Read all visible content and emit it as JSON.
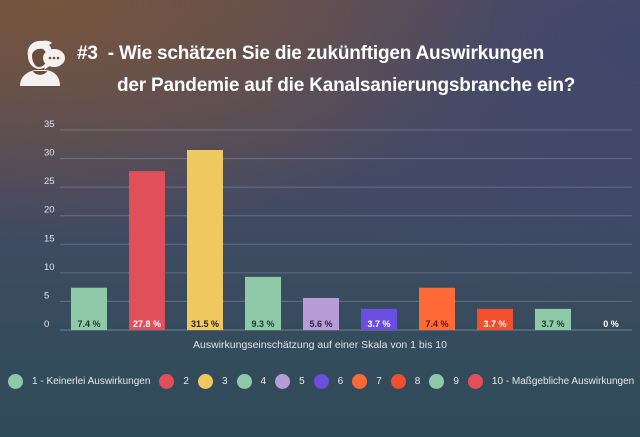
{
  "header": {
    "icon": "person-speech-bubble-icon",
    "number": "#3",
    "title_line1": "- Wie schätzen Sie die zukünftigen Auswirkungen",
    "title_line2": "der Pandemie auf die Kanalsanierungsbranche ein?"
  },
  "chart_data": {
    "type": "bar",
    "title": "#3 - Wie schätzen Sie die zukünftigen Auswirkungen der Pandemie auf die Kanalsanierungsbranche ein?",
    "xlabel": "Auswirkungseinschätzung auf einer Skala von 1 bis 10",
    "ylabel": "",
    "ylim": [
      0,
      35
    ],
    "yticks": [
      0,
      5,
      10,
      15,
      20,
      25,
      30,
      35
    ],
    "grid": true,
    "legend_position": "bottom",
    "categories": [
      "1 - Keinerlei Auswirkungen",
      "2",
      "3",
      "4",
      "5",
      "6",
      "7",
      "8",
      "9",
      "10 - Maßgebliche Auswirkungen"
    ],
    "values": [
      7.4,
      27.8,
      31.5,
      9.3,
      5.6,
      3.7,
      7.4,
      3.7,
      3.7,
      0
    ],
    "data_labels": [
      "7.4 %",
      "27.8 %",
      "31.5 %",
      "9.3 %",
      "5.6 %",
      "3.7 %",
      "7.4 %",
      "3.7 %",
      "3.7 %",
      "0 %"
    ],
    "colors": [
      "#8fc9a8",
      "#e0505a",
      "#f0c860",
      "#8fc9a8",
      "#b89cd8",
      "#6a4ee0",
      "#ff6a38",
      "#f0502e",
      "#8fc9a8",
      "#e0505a"
    ],
    "label_colors": [
      "#1e3a2c",
      "#ffffff",
      "#2a2410",
      "#1e3a2c",
      "#2e2244",
      "#ffffff",
      "#5a1a0c",
      "#ffffff",
      "#1e3a2c",
      "#ffffff"
    ]
  }
}
